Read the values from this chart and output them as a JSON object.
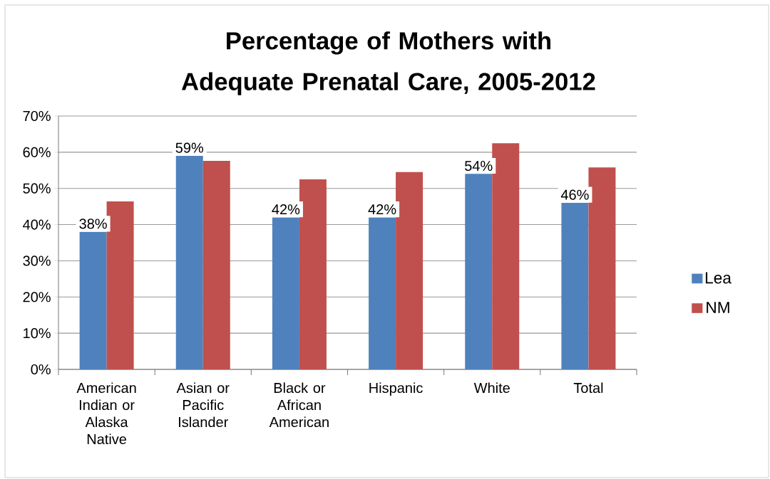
{
  "chart_data": {
    "type": "bar",
    "title": "Percentage of Mothers with Adequate Prenatal Care, 2005-2012",
    "categories": [
      "American Indian or Alaska Native",
      "Asian or Pacific Islander",
      "Black or African American",
      "Hispanic",
      "White",
      "Total"
    ],
    "series": [
      {
        "name": "Lea",
        "color": "#4f81bd",
        "values": [
          38,
          59,
          42,
          42,
          54,
          46
        ],
        "value_labels": [
          "38%",
          "59%",
          "42%",
          "42%",
          "54%",
          "46%"
        ]
      },
      {
        "name": "NM",
        "color": "#c0504d",
        "values": [
          46.4,
          57.6,
          52.5,
          54.5,
          62.5,
          55.8
        ]
      }
    ],
    "ylim": [
      0,
      70
    ],
    "yticks": [
      {
        "value": 0,
        "label": "0%"
      },
      {
        "value": 10,
        "label": "10%"
      },
      {
        "value": 20,
        "label": "20%"
      },
      {
        "value": 30,
        "label": "30%"
      },
      {
        "value": 40,
        "label": "40%"
      },
      {
        "value": 50,
        "label": "50%"
      },
      {
        "value": 60,
        "label": "60%"
      },
      {
        "value": 70,
        "label": "70%"
      }
    ],
    "grid": "y",
    "legend": "right"
  }
}
